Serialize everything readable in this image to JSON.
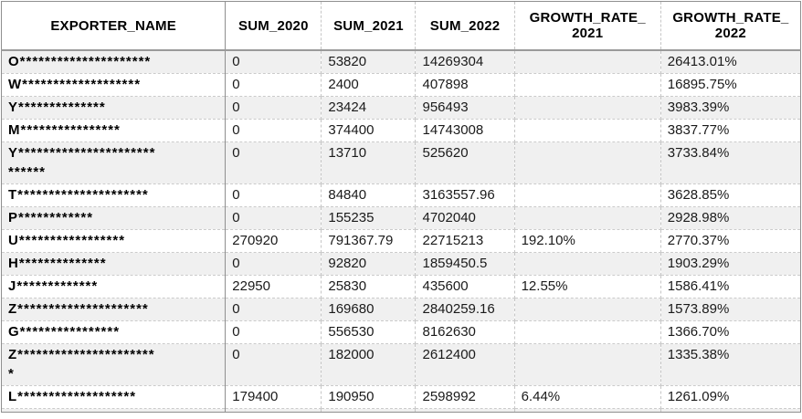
{
  "table": {
    "columns": [
      {
        "key": "name",
        "label": "EXPORTER_NAME"
      },
      {
        "key": "sum_2020",
        "label": "SUM_2020"
      },
      {
        "key": "sum_2021",
        "label": "SUM_2021"
      },
      {
        "key": "sum_2022",
        "label": "SUM_2022"
      },
      {
        "key": "growth_2021",
        "label": "GROWTH_RATE_\n2021"
      },
      {
        "key": "growth_2022",
        "label": "GROWTH_RATE_\n2022"
      }
    ],
    "rows": [
      {
        "name": "O*********************",
        "sum_2020": "0",
        "sum_2021": "53820",
        "sum_2022": "14269304",
        "growth_2021": "",
        "growth_2022": "26413.01%"
      },
      {
        "name": "W*******************",
        "sum_2020": "0",
        "sum_2021": "2400",
        "sum_2022": "407898",
        "growth_2021": "",
        "growth_2022": "16895.75%"
      },
      {
        "name": "Y**************",
        "sum_2020": "0",
        "sum_2021": "23424",
        "sum_2022": "956493",
        "growth_2021": "",
        "growth_2022": "3983.39%"
      },
      {
        "name": "M****************",
        "sum_2020": "0",
        "sum_2021": "374400",
        "sum_2022": "14743008",
        "growth_2021": "",
        "growth_2022": "3837.77%"
      },
      {
        "name": "Y**********************\n******",
        "sum_2020": "0",
        "sum_2021": "13710",
        "sum_2022": "525620",
        "growth_2021": "",
        "growth_2022": "3733.84%"
      },
      {
        "name": "T*********************",
        "sum_2020": "0",
        "sum_2021": "84840",
        "sum_2022": "3163557.96",
        "growth_2021": "",
        "growth_2022": "3628.85%"
      },
      {
        "name": "P************",
        "sum_2020": "0",
        "sum_2021": "155235",
        "sum_2022": "4702040",
        "growth_2021": "",
        "growth_2022": "2928.98%"
      },
      {
        "name": "U*****************",
        "sum_2020": "270920",
        "sum_2021": "791367.79",
        "sum_2022": "22715213",
        "growth_2021": "192.10%",
        "growth_2022": "2770.37%"
      },
      {
        "name": "H**************",
        "sum_2020": "0",
        "sum_2021": "92820",
        "sum_2022": "1859450.5",
        "growth_2021": "",
        "growth_2022": "1903.29%"
      },
      {
        "name": "J*************",
        "sum_2020": "22950",
        "sum_2021": "25830",
        "sum_2022": "435600",
        "growth_2021": "12.55%",
        "growth_2022": "1586.41%"
      },
      {
        "name": "Z*********************",
        "sum_2020": "0",
        "sum_2021": "169680",
        "sum_2022": "2840259.16",
        "growth_2021": "",
        "growth_2022": "1573.89%"
      },
      {
        "name": "G****************",
        "sum_2020": "0",
        "sum_2021": "556530",
        "sum_2022": "8162630",
        "growth_2021": "",
        "growth_2022": "1366.70%"
      },
      {
        "name": "Z**********************\n*",
        "sum_2020": "0",
        "sum_2021": "182000",
        "sum_2022": "2612400",
        "growth_2021": "",
        "growth_2022": "1335.38%"
      },
      {
        "name": "L*******************",
        "sum_2020": "179400",
        "sum_2021": "190950",
        "sum_2022": "2598992",
        "growth_2021": "6.44%",
        "growth_2022": "1261.09%"
      }
    ]
  },
  "colors": {
    "banding_row": "#f0f0f0",
    "gridline_solid": "#8f8f8f",
    "gridline_dashed": "#c6c6c6",
    "header_text": "#000000",
    "cell_text": "#1a1a1a"
  }
}
